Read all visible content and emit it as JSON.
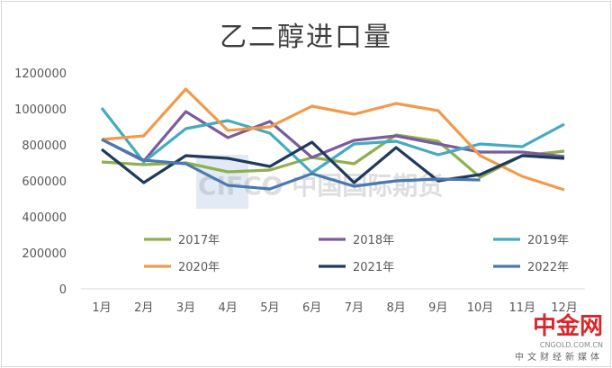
{
  "chart_data": {
    "type": "line",
    "title": "乙二醇进口量",
    "xlabel": "",
    "ylabel": "",
    "categories": [
      "1月",
      "2月",
      "3月",
      "4月",
      "5月",
      "6月",
      "7月",
      "8月",
      "9月",
      "10月",
      "11月",
      "12月"
    ],
    "ylim": [
      0,
      1200000
    ],
    "yticks": [
      0,
      200000,
      400000,
      600000,
      800000,
      1000000,
      1200000
    ],
    "grid": false,
    "legend": "bottom",
    "series": [
      {
        "name": "2017年",
        "color": "#8fb04f",
        "values": [
          705000,
          690000,
          700000,
          650000,
          660000,
          730000,
          695000,
          855000,
          820000,
          620000,
          740000,
          765000
        ]
      },
      {
        "name": "2018年",
        "color": "#7a5c9c",
        "values": [
          830000,
          710000,
          985000,
          840000,
          930000,
          730000,
          825000,
          850000,
          805000,
          760000,
          760000,
          735000
        ]
      },
      {
        "name": "2019年",
        "color": "#45aac1",
        "values": [
          1005000,
          705000,
          890000,
          935000,
          865000,
          645000,
          805000,
          820000,
          745000,
          805000,
          790000,
          915000
        ]
      },
      {
        "name": "2020年",
        "color": "#f29a4a",
        "values": [
          830000,
          850000,
          1110000,
          880000,
          900000,
          1015000,
          970000,
          1030000,
          990000,
          740000,
          625000,
          550000
        ]
      },
      {
        "name": "2021年",
        "color": "#1f3a5c",
        "values": [
          775000,
          590000,
          740000,
          725000,
          680000,
          815000,
          590000,
          785000,
          600000,
          635000,
          740000,
          725000
        ]
      },
      {
        "name": "2022年",
        "color": "#4a78b0",
        "values": [
          830000,
          715000,
          695000,
          575000,
          555000,
          640000,
          570000,
          600000,
          610000,
          605000,
          null,
          null
        ]
      }
    ]
  },
  "watermarks": {
    "cifco": "CIFCO 中国国际期货",
    "logo": "中金网",
    "logo_url": "CNGOLD.COM.CN",
    "logo_sub": "中文财经新媒体"
  }
}
